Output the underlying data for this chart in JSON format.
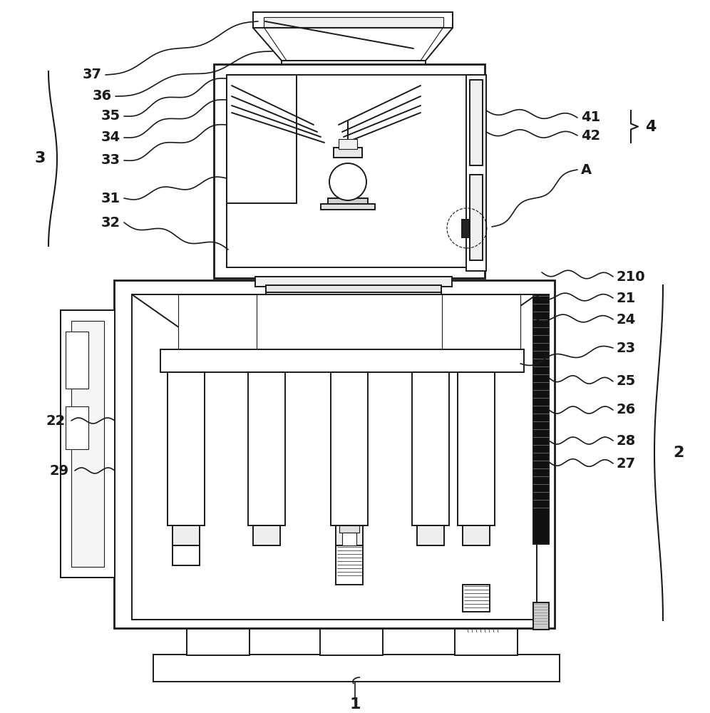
{
  "bg": "#ffffff",
  "lc": "#1a1a1a",
  "lw": 1.4,
  "tlw": 0.8,
  "thklw": 2.0
}
